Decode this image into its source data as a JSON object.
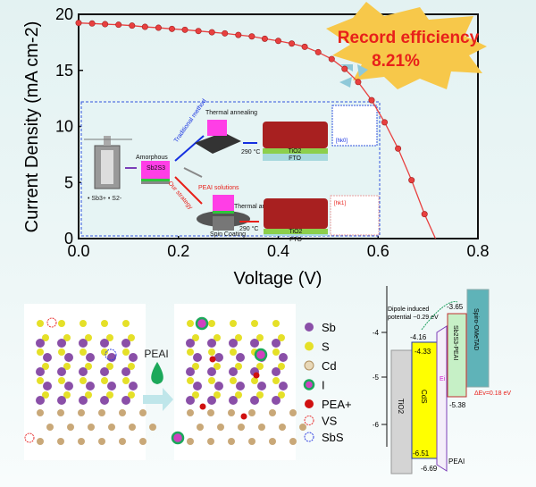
{
  "chart_data": {
    "type": "line",
    "xlabel": "Voltage (V)",
    "ylabel": "Current Density (mA cm-2)",
    "xlim": [
      0,
      0.8
    ],
    "ylim": [
      0,
      20
    ],
    "x_ticks": [
      "0.0",
      "0.2",
      "0.4",
      "0.6",
      "0.8"
    ],
    "y_ticks": [
      "0",
      "5",
      "10",
      "15",
      "20"
    ],
    "grid": false,
    "series": [
      {
        "color": "#e8403f",
        "x": [
          0.0,
          0.027,
          0.053,
          0.08,
          0.107,
          0.133,
          0.16,
          0.187,
          0.213,
          0.24,
          0.267,
          0.293,
          0.32,
          0.347,
          0.373,
          0.4,
          0.427,
          0.453,
          0.48,
          0.507,
          0.533,
          0.56,
          0.587,
          0.613,
          0.64,
          0.667,
          0.693,
          0.715
        ],
        "y": [
          19.23,
          19.18,
          19.12,
          19.07,
          18.99,
          18.88,
          18.8,
          18.7,
          18.62,
          18.51,
          18.4,
          18.3,
          18.16,
          18.03,
          17.82,
          17.63,
          17.39,
          17.1,
          16.62,
          16.01,
          15.13,
          13.96,
          12.34,
          10.37,
          8.03,
          5.21,
          2.18,
          0
        ]
      }
    ],
    "annotation": {
      "line1": "Record efficiency",
      "line2": "8.21%"
    }
  },
  "inset": {
    "thermal_annealing_top": "Thermal annealing",
    "traditional": "Traditional method",
    "temp_top": "290 °C",
    "tio2_top": "TiO2",
    "fto_top": "FTO",
    "dir_top": "[hk0]",
    "amorphous": "Amorphous",
    "sb2s3": "Sb2S3",
    "ions": "• Sb3+ • S2-",
    "our": "Our strategy",
    "peai_solutions": "PEAI solutions",
    "thermal_bottom": "Thermal annealing",
    "temp_bottom": "290 °C",
    "tio2_bottom": "TiO2",
    "fto_bottom": "FTO",
    "dir_bottom": "[hk1]",
    "spin": "Spin Coating"
  },
  "crystal": {
    "arrow_label": "PEAI",
    "legend": [
      "Sb",
      "S",
      "Cd",
      "I",
      "PEA+",
      "VS",
      "SbS"
    ]
  },
  "band": {
    "y_ticks": [
      "-4",
      "-5",
      "-6"
    ],
    "layers": [
      "TiO2",
      "CdS",
      "Sb2S3-PEAI",
      "Spiro-OMeTAD",
      "PEAI"
    ],
    "values": [
      "-3.65",
      "-4.16",
      "-4.33",
      "-5.38",
      "-6.51",
      "-6.69"
    ],
    "dipole": "Dipole induced potential ~0.29 eV",
    "delta_ev": "ΔEv=0.18 eV",
    "ei": "Ei"
  }
}
